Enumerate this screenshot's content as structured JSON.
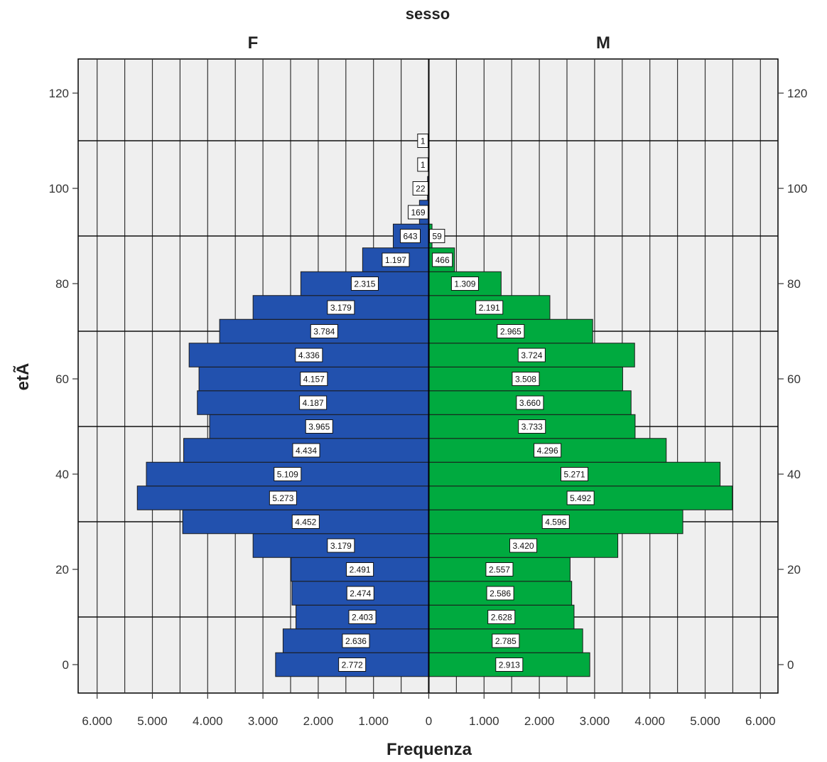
{
  "chart_data": {
    "type": "bar",
    "orientation": "horizontal",
    "title": "sesso",
    "xlabel": "Frequenza",
    "ylabel": "etÃ",
    "panels": [
      {
        "name": "F",
        "color": "#2251AE"
      },
      {
        "name": "M",
        "color": "#00AA3F"
      }
    ],
    "xlim": [
      0,
      6000
    ],
    "x_ticks": [
      "6.000",
      "5.000",
      "4.000",
      "3.000",
      "2.000",
      "1.000",
      "0",
      "1.000",
      "2.000",
      "3.000",
      "4.000",
      "5.000",
      "6.000"
    ],
    "ylim": [
      -5,
      125
    ],
    "y_ticks": [
      0,
      20,
      40,
      60,
      80,
      100,
      120
    ],
    "y_tick_labels": [
      "0",
      "20",
      "40",
      "60",
      "80",
      "100",
      "120"
    ],
    "bin_width": 5,
    "age_bins": [
      0,
      5,
      10,
      15,
      20,
      25,
      30,
      35,
      40,
      45,
      50,
      55,
      60,
      65,
      70,
      75,
      80,
      85,
      90,
      95,
      100,
      105,
      110
    ],
    "series": [
      {
        "name": "F",
        "values": [
          2772,
          2636,
          2403,
          2474,
          2491,
          3179,
          4452,
          5273,
          5109,
          4434,
          3965,
          4187,
          4157,
          4336,
          3784,
          3179,
          2315,
          1197,
          643,
          169,
          22,
          1,
          1
        ],
        "labels": [
          "2.772",
          "2.636",
          "2.403",
          "2.474",
          "2.491",
          "3.179",
          "4.452",
          "5.273",
          "5.109",
          "4.434",
          "3.965",
          "4.187",
          "4.157",
          "4.336",
          "3.784",
          "3.179",
          "2.315",
          "1.197",
          "643",
          "169",
          "22",
          "1",
          "1"
        ]
      },
      {
        "name": "M",
        "values": [
          2913,
          2785,
          2628,
          2586,
          2557,
          3420,
          4596,
          5492,
          5271,
          4296,
          3733,
          3660,
          3508,
          3724,
          2965,
          2191,
          1309,
          466,
          59,
          0,
          0,
          0,
          0
        ],
        "labels": [
          "2.913",
          "2.785",
          "2.628",
          "2.586",
          "2.557",
          "3.420",
          "4.596",
          "5.492",
          "5.271",
          "4.296",
          "3.733",
          "3.660",
          "3.508",
          "3.724",
          "2.965",
          "2.191",
          "1.309",
          "466",
          "59",
          "",
          "",
          "",
          ""
        ]
      }
    ],
    "grid": true
  }
}
